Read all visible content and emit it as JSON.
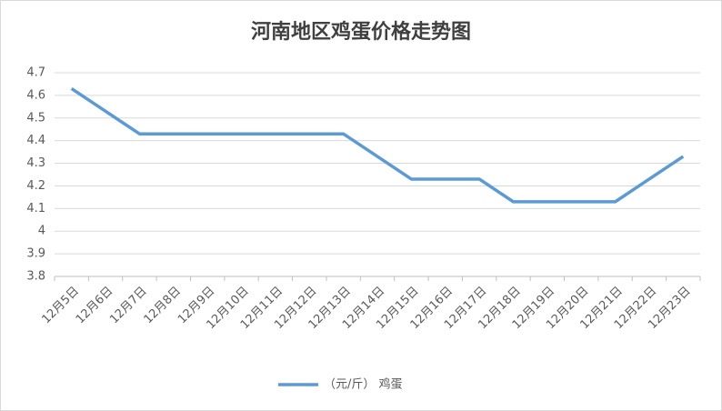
{
  "chart_data": {
    "type": "line",
    "title": "河南地区鸡蛋价格走势图",
    "categories": [
      "12月5日",
      "12月6日",
      "12月7日",
      "12月8日",
      "12月9日",
      "12月10日",
      "12月11日",
      "12月12日",
      "12月13日",
      "12月14日",
      "12月15日",
      "12月16日",
      "12月17日",
      "12月18日",
      "12月19日",
      "12月20日",
      "12月21日",
      "12月22日",
      "12月23日"
    ],
    "series": [
      {
        "name": "（元/斤） 鸡蛋",
        "color": "#5b9bd5",
        "values": [
          4.63,
          4.53,
          4.43,
          4.43,
          4.43,
          4.43,
          4.43,
          4.43,
          4.43,
          4.33,
          4.23,
          4.23,
          4.23,
          4.13,
          4.13,
          4.13,
          4.13,
          4.23,
          4.33
        ]
      }
    ],
    "ylim": [
      3.8,
      4.7
    ],
    "yticks": [
      3.8,
      3.9,
      4,
      4.1,
      4.2,
      4.3,
      4.4,
      4.5,
      4.6,
      4.7
    ],
    "grid": true,
    "legend": "bottom"
  }
}
